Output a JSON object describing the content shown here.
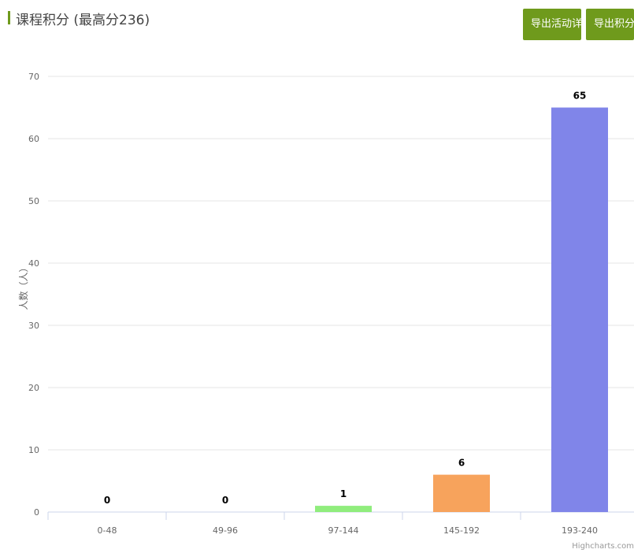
{
  "header": {
    "title": "课程积分",
    "subtitle": "(最高分236)",
    "buttons": [
      "导出活动详情",
      "导出积分详情"
    ]
  },
  "credit": "Highcharts.com",
  "colors": {
    "accent": "#6f9a1c",
    "series": [
      "#7cb5ec",
      "#434348",
      "#90ed7d",
      "#f7a35c",
      "#8085e9"
    ]
  },
  "chart_data": {
    "type": "bar",
    "categories": [
      "0-48",
      "49-96",
      "97-144",
      "145-192",
      "193-240"
    ],
    "values": [
      0,
      0,
      1,
      6,
      65
    ],
    "xlabel": "",
    "ylabel": "人数（人）",
    "ylim": [
      0,
      70
    ],
    "yticks": [
      0,
      10,
      20,
      30,
      40,
      50,
      60,
      70
    ],
    "grid": true,
    "data_labels": true
  }
}
